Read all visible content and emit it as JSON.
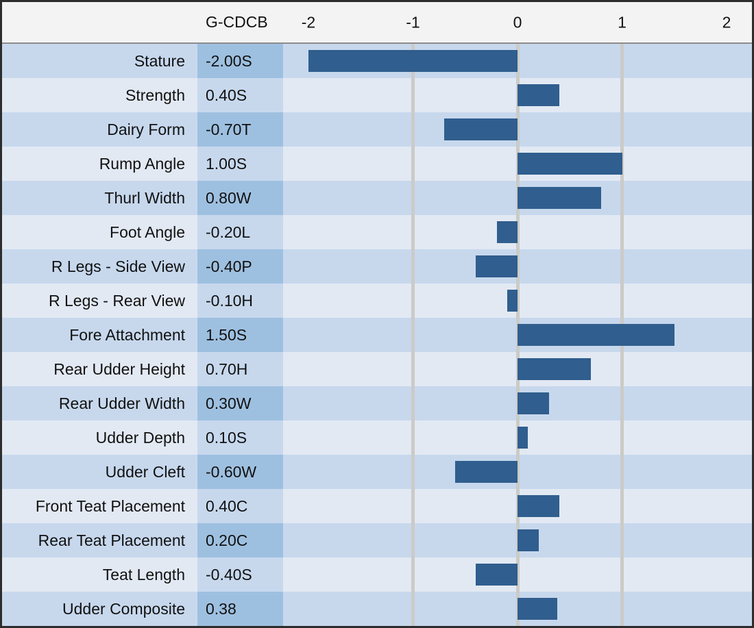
{
  "header": {
    "score_column_label": "G-CDCB"
  },
  "colors": {
    "bar": "#305e8e",
    "row_dark": "#c7d8ed",
    "row_light": "#e2e9f3",
    "value_cell_dark": "#9ec0e0",
    "value_cell_light": "#c7d8ed",
    "gridline": "#cbcbc7",
    "header_bg": "#f3f3f3",
    "frame_border": "#2d2d2d"
  },
  "chart_data": {
    "type": "bar",
    "orientation": "horizontal",
    "title": "",
    "xlabel": "",
    "ylabel": "",
    "xlim": [
      -2.24,
      2.24
    ],
    "grid": true,
    "gridline_values": [
      -1,
      0,
      1
    ],
    "tick_values": [
      -2,
      -1,
      0,
      1,
      2
    ],
    "tick_labels": [
      "-2",
      "-1",
      "0",
      "1",
      "2"
    ],
    "categories": [
      "Stature",
      "Strength",
      "Dairy Form",
      "Rump Angle",
      "Thurl Width",
      "Foot Angle",
      "R Legs - Side View",
      "R Legs - Rear View",
      "Fore Attachment",
      "Rear Udder Height",
      "Rear Udder Width",
      "Udder Depth",
      "Udder Cleft",
      "Front Teat Placement",
      "Rear Teat Placement",
      "Teat Length",
      "Udder Composite"
    ],
    "value_labels": [
      "-2.00S",
      "0.40S",
      "-0.70T",
      "1.00S",
      "0.80W",
      "-0.20L",
      "-0.40P",
      "-0.10H",
      "1.50S",
      "0.70H",
      "0.30W",
      "0.10S",
      "-0.60W",
      "0.40C",
      "0.20C",
      "-0.40S",
      "0.38"
    ],
    "values": [
      -2.0,
      0.4,
      -0.7,
      1.0,
      0.8,
      -0.2,
      -0.4,
      -0.1,
      1.5,
      0.7,
      0.3,
      0.1,
      -0.6,
      0.4,
      0.2,
      -0.4,
      0.38
    ]
  }
}
